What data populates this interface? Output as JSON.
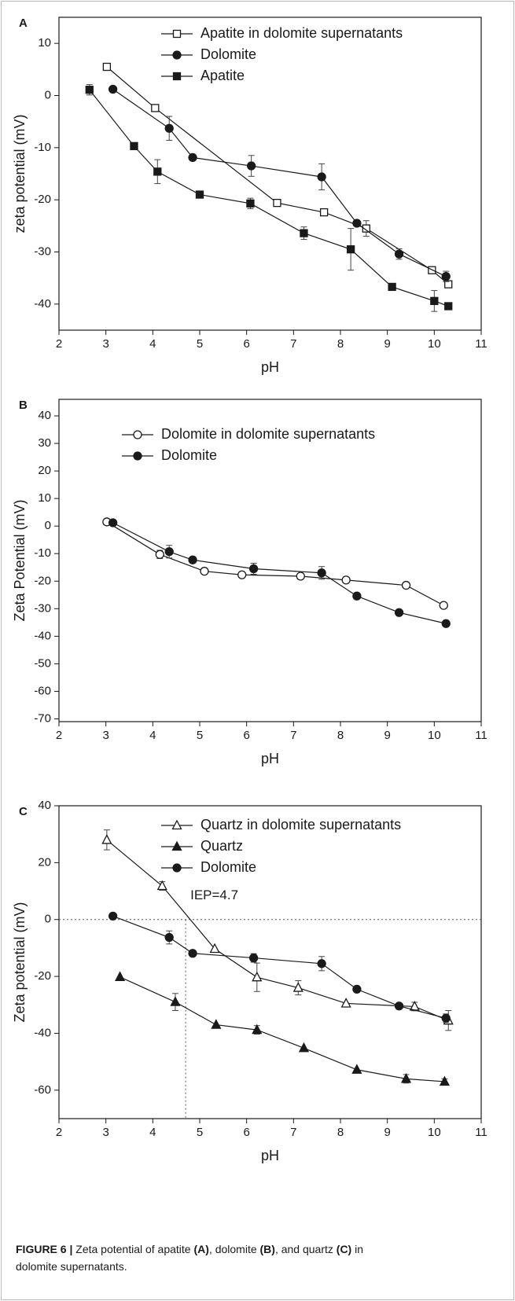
{
  "chart_data": [
    {
      "type": "line",
      "panel_label": "A",
      "x_label": "pH",
      "y_label": "zeta potential (mV)",
      "xlim": [
        2,
        11
      ],
      "xticks": [
        2,
        3,
        4,
        5,
        6,
        7,
        8,
        9,
        10,
        11
      ],
      "ylim": [
        -45,
        15
      ],
      "yticks": [
        10,
        0,
        -10,
        -20,
        -30,
        -40
      ],
      "legend": "upper left",
      "series": [
        {
          "name": "Apatite in dolomite supernatants",
          "color": "#1a1a1a",
          "marker": "square",
          "filled": false,
          "x": [
            3.02,
            4.05,
            6.65,
            7.65,
            8.55,
            9.95,
            10.3
          ],
          "values": [
            5.5,
            -2.4,
            -20.6,
            -22.4,
            -25.5,
            -33.5,
            -36.2
          ],
          "errors": [
            null,
            null,
            null,
            null,
            1.5,
            null,
            null
          ]
        },
        {
          "name": "Dolomite",
          "color": "#1a1a1a",
          "marker": "circle",
          "filled": true,
          "x": [
            3.15,
            4.35,
            4.85,
            6.1,
            7.6,
            8.35,
            9.25,
            10.25
          ],
          "values": [
            1.2,
            -6.3,
            -11.9,
            -13.5,
            -15.6,
            -24.5,
            -30.4,
            -34.7
          ],
          "errors": [
            null,
            2.3,
            null,
            2,
            2.5,
            null,
            1,
            1
          ]
        },
        {
          "name": "Apatite",
          "color": "#1a1a1a",
          "marker": "square",
          "filled": true,
          "x": [
            2.65,
            3.6,
            4.1,
            5,
            6.08,
            7.22,
            8.22,
            9.1,
            10,
            10.3
          ],
          "values": [
            1.1,
            -9.7,
            -14.6,
            -19,
            -20.7,
            -26.4,
            -29.5,
            -36.7,
            -39.4,
            -40.4
          ],
          "errors": [
            1,
            null,
            2.3,
            null,
            1,
            1.2,
            4,
            null,
            2,
            null
          ]
        }
      ]
    },
    {
      "type": "line",
      "panel_label": "B",
      "x_label": "pH",
      "y_label": "Zeta Potential (mV)",
      "xlim": [
        2,
        11
      ],
      "xticks": [
        2,
        3,
        4,
        5,
        6,
        7,
        8,
        9,
        10,
        11
      ],
      "ylim": [
        -71,
        46
      ],
      "yticks": [
        40,
        30,
        20,
        10,
        0,
        -10,
        -20,
        -30,
        -40,
        -50,
        -60,
        -70
      ],
      "legend": "upper left",
      "series": [
        {
          "name": "Dolomite in dolomite supernatants",
          "color": "#1a1a1a",
          "marker": "circle",
          "filled": false,
          "x": [
            3.02,
            4.15,
            5.1,
            5.9,
            7.15,
            8.12,
            9.4,
            10.2
          ],
          "values": [
            1.5,
            -10.3,
            -16.4,
            -17.7,
            -18.2,
            -19.6,
            -21.5,
            -28.8
          ],
          "errors": [
            1,
            1.5,
            null,
            null,
            null,
            null,
            null,
            null
          ]
        },
        {
          "name": "Dolomite",
          "color": "#1a1a1a",
          "marker": "circle",
          "filled": true,
          "x": [
            3.15,
            4.35,
            4.85,
            6.15,
            7.6,
            8.35,
            9.25,
            10.25
          ],
          "values": [
            1.2,
            -9.3,
            -12.3,
            -15.5,
            -17,
            -25.4,
            -31.4,
            -35.4
          ],
          "errors": [
            null,
            2.3,
            null,
            2,
            2.3,
            null,
            null,
            null
          ]
        }
      ]
    },
    {
      "type": "line",
      "panel_label": "C",
      "x_label": "pH",
      "y_label": "Zeta potential (mV)",
      "xlim": [
        2,
        11
      ],
      "xticks": [
        2,
        3,
        4,
        5,
        6,
        7,
        8,
        9,
        10,
        11
      ],
      "ylim": [
        -70,
        40
      ],
      "yticks": [
        40,
        20,
        0,
        -20,
        -40,
        -60
      ],
      "legend": "upper left",
      "annotation": "IEP=4.7",
      "reference_x": 4.7,
      "reference_y": 0,
      "series": [
        {
          "name": "Quartz in dolomite supernatants",
          "color": "#1a1a1a",
          "marker": "triangle",
          "filled": false,
          "x": [
            3.02,
            4.2,
            5.32,
            6.22,
            7.1,
            8.12,
            9.58,
            10.3
          ],
          "values": [
            28,
            11.8,
            -10.3,
            -20.3,
            -24,
            -29.5,
            -30.6,
            -35.5
          ],
          "errors": [
            3.5,
            1.5,
            null,
            5,
            2.5,
            null,
            1.5,
            3.5
          ]
        },
        {
          "name": "Quartz",
          "color": "#1a1a1a",
          "marker": "triangle",
          "filled": true,
          "x": [
            3.3,
            4.48,
            5.35,
            6.22,
            7.22,
            8.35,
            9.4,
            10.22
          ],
          "values": [
            -20.2,
            -29,
            -37,
            -38.8,
            -45.2,
            -52.8,
            -56,
            -57
          ],
          "errors": [
            null,
            3,
            null,
            1.5,
            null,
            null,
            1.5,
            1
          ]
        },
        {
          "name": "Dolomite",
          "color": "#1a1a1a",
          "marker": "circle",
          "filled": true,
          "x": [
            3.15,
            4.35,
            4.85,
            6.15,
            7.6,
            8.35,
            9.25,
            10.25
          ],
          "values": [
            1.2,
            -6.3,
            -11.9,
            -13.5,
            -15.5,
            -24.5,
            -30.4,
            -34.7
          ],
          "errors": [
            null,
            2.3,
            null,
            1.5,
            2.5,
            null,
            null,
            1.5
          ]
        }
      ]
    }
  ],
  "caption": {
    "lines": [
      [
        {
          "text": "FIGURE 6 |",
          "bold": true
        },
        {
          "text": " Zeta potential of apatite ",
          "bold": false
        },
        {
          "text": "(A)",
          "bold": true
        },
        {
          "text": ", dolomite ",
          "bold": false
        },
        {
          "text": "(B)",
          "bold": true
        },
        {
          "text": ", and quartz ",
          "bold": false
        },
        {
          "text": "(C)",
          "bold": true
        },
        {
          "text": " in",
          "bold": false
        }
      ],
      [
        {
          "text": "dolomite supernatants.",
          "bold": false
        }
      ]
    ]
  }
}
